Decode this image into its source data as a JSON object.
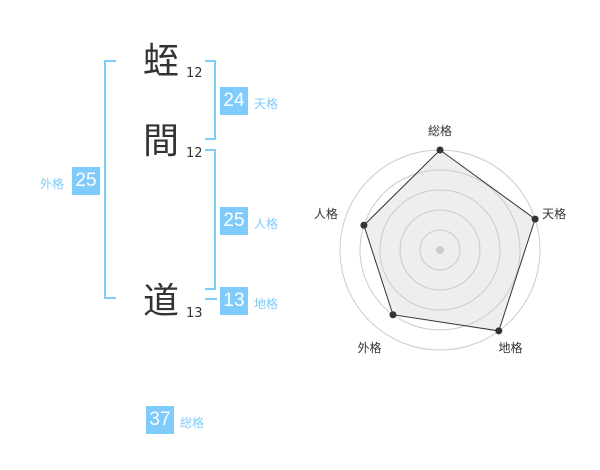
{
  "name": {
    "characters": [
      {
        "char": "蛭",
        "strokes": "12"
      },
      {
        "char": "間",
        "strokes": "12"
      },
      {
        "char": "道",
        "strokes": "13"
      }
    ]
  },
  "scores": {
    "tenkaku": {
      "label": "天格",
      "value": "24"
    },
    "jinkaku": {
      "label": "人格",
      "value": "25"
    },
    "chikaku": {
      "label": "地格",
      "value": "13"
    },
    "gaikaku": {
      "label": "外格",
      "value": "25"
    },
    "soukaku": {
      "label": "総格",
      "value": "37"
    }
  },
  "colors": {
    "accent": "#7fcbfb",
    "text": "#333333"
  },
  "chart_data": {
    "type": "radar",
    "axes": [
      "総格",
      "天格",
      "地格",
      "外格",
      "人格"
    ],
    "values": [
      5,
      5,
      5,
      4,
      4
    ],
    "range": [
      0,
      5
    ],
    "rings": 5
  }
}
